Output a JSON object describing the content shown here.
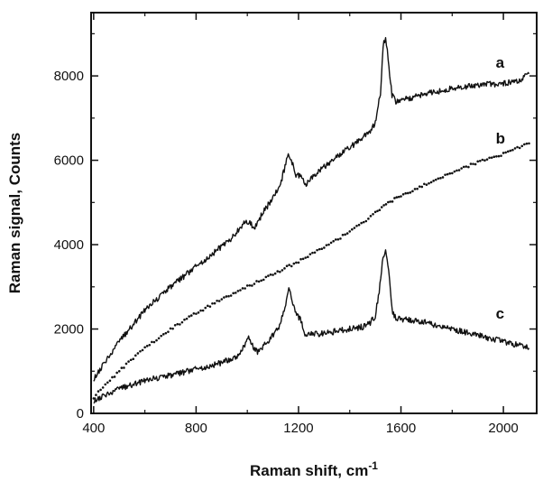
{
  "chart_data": {
    "type": "line",
    "title": "",
    "xlabel": "Raman shift, cm",
    "xlabel_superscript": "-1",
    "ylabel": "Raman signal, Counts",
    "xlim": [
      390,
      2130
    ],
    "ylim": [
      0,
      9500
    ],
    "x_ticks": [
      400,
      800,
      1200,
      1600,
      2000
    ],
    "y_ticks": [
      0,
      2000,
      4000,
      6000,
      8000
    ],
    "grid": false,
    "series": [
      {
        "label": "a",
        "style": "solid",
        "points": [
          [
            400,
            820
          ],
          [
            500,
            1700
          ],
          [
            600,
            2450
          ],
          [
            700,
            3000
          ],
          [
            800,
            3480
          ],
          [
            900,
            3960
          ],
          [
            950,
            4220
          ],
          [
            990,
            4550
          ],
          [
            1010,
            4500
          ],
          [
            1030,
            4400
          ],
          [
            1060,
            4750
          ],
          [
            1100,
            5100
          ],
          [
            1130,
            5450
          ],
          [
            1150,
            5900
          ],
          [
            1160,
            6200
          ],
          [
            1175,
            5950
          ],
          [
            1190,
            5650
          ],
          [
            1210,
            5600
          ],
          [
            1230,
            5450
          ],
          [
            1260,
            5650
          ],
          [
            1300,
            5850
          ],
          [
            1350,
            6080
          ],
          [
            1400,
            6300
          ],
          [
            1450,
            6520
          ],
          [
            1480,
            6700
          ],
          [
            1500,
            6900
          ],
          [
            1520,
            7600
          ],
          [
            1530,
            8700
          ],
          [
            1540,
            8900
          ],
          [
            1550,
            8400
          ],
          [
            1565,
            7550
          ],
          [
            1580,
            7380
          ],
          [
            1620,
            7450
          ],
          [
            1700,
            7580
          ],
          [
            1800,
            7700
          ],
          [
            1900,
            7780
          ],
          [
            2000,
            7820
          ],
          [
            2060,
            7880
          ],
          [
            2100,
            8050
          ]
        ]
      },
      {
        "label": "b",
        "style": "dotted",
        "points": [
          [
            400,
            380
          ],
          [
            500,
            1000
          ],
          [
            600,
            1550
          ],
          [
            700,
            2000
          ],
          [
            800,
            2380
          ],
          [
            900,
            2700
          ],
          [
            1000,
            3000
          ],
          [
            1100,
            3300
          ],
          [
            1200,
            3600
          ],
          [
            1300,
            3950
          ],
          [
            1400,
            4300
          ],
          [
            1500,
            4750
          ],
          [
            1550,
            5000
          ],
          [
            1600,
            5150
          ],
          [
            1700,
            5450
          ],
          [
            1800,
            5720
          ],
          [
            1900,
            5950
          ],
          [
            2000,
            6150
          ],
          [
            2100,
            6400
          ]
        ]
      },
      {
        "label": "c",
        "style": "solid",
        "points": [
          [
            400,
            300
          ],
          [
            500,
            580
          ],
          [
            600,
            780
          ],
          [
            700,
            900
          ],
          [
            800,
            1050
          ],
          [
            900,
            1200
          ],
          [
            960,
            1350
          ],
          [
            990,
            1620
          ],
          [
            1005,
            1780
          ],
          [
            1020,
            1600
          ],
          [
            1040,
            1450
          ],
          [
            1080,
            1700
          ],
          [
            1120,
            2000
          ],
          [
            1150,
            2600
          ],
          [
            1162,
            2950
          ],
          [
            1175,
            2700
          ],
          [
            1190,
            2350
          ],
          [
            1210,
            2200
          ],
          [
            1225,
            1900
          ],
          [
            1250,
            1880
          ],
          [
            1300,
            1900
          ],
          [
            1350,
            1950
          ],
          [
            1400,
            2000
          ],
          [
            1450,
            2050
          ],
          [
            1480,
            2150
          ],
          [
            1500,
            2300
          ],
          [
            1515,
            2900
          ],
          [
            1530,
            3750
          ],
          [
            1540,
            3850
          ],
          [
            1552,
            3400
          ],
          [
            1565,
            2450
          ],
          [
            1580,
            2250
          ],
          [
            1650,
            2200
          ],
          [
            1700,
            2150
          ],
          [
            1800,
            2000
          ],
          [
            1900,
            1850
          ],
          [
            2000,
            1700
          ],
          [
            2100,
            1550
          ]
        ]
      }
    ]
  }
}
